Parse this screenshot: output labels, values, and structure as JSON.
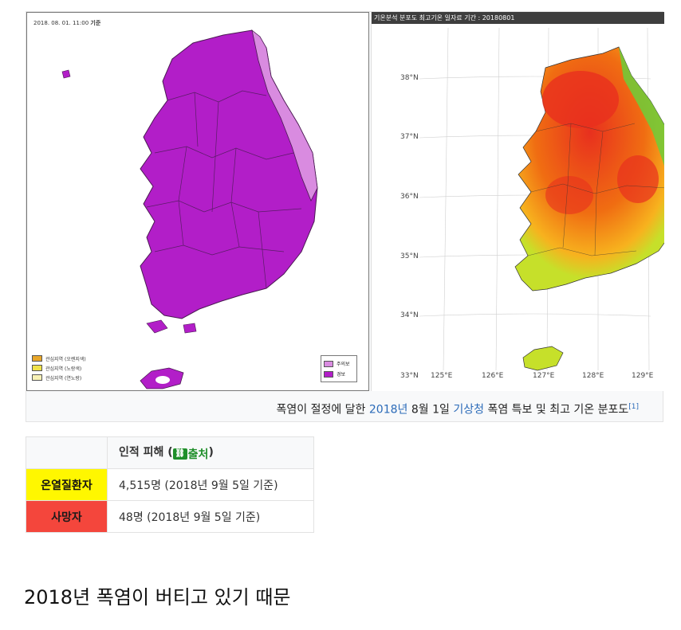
{
  "left_map": {
    "timestamp_prefix": "2018. 08. 01. 11:00",
    "timestamp_suffix": "기준",
    "legend_advisory": [
      {
        "label": "관심지역 (오렌지색)",
        "color": "#e8a72a"
      },
      {
        "label": "관심지역 (노랑색)",
        "color": "#f0e24a"
      },
      {
        "label": "관심지역 (연노랑)",
        "color": "#f7f1b6"
      }
    ],
    "legend_warning": [
      {
        "label": "주의보",
        "color": "#d98be0"
      },
      {
        "label": "경보",
        "color": "#b21ec8"
      }
    ],
    "colors": {
      "warning": "#b21ec8",
      "advisory": "#d98be0",
      "outline": "#4a1a52"
    }
  },
  "right_map": {
    "title": "기온분석 분포도 최고기온 일자료 기간 : 20180801",
    "lat_labels": [
      "38°N",
      "37°N",
      "36°N",
      "35°N",
      "34°N",
      "33°N"
    ],
    "lon_labels": [
      "125°E",
      "126°E",
      "127°E",
      "128°E",
      "129°E"
    ],
    "colors": {
      "hot": "#e8301e",
      "warm": "#f06d12",
      "mild": "#f7b21e",
      "cool": "#c6e02a",
      "cold": "#6cce3a"
    }
  },
  "caption": {
    "part1": "폭염이 절정에 달한",
    "link_year": "2018년",
    "part2": "8월 1일",
    "link_kma": "기상청",
    "part3": "폭염 특보 및 최고 기온 분포도",
    "ref": "[1]"
  },
  "damage_table": {
    "header_label": "인적 피해 (",
    "source_icon": "link-icon",
    "source_label": "출처",
    "header_close": ")",
    "rows": [
      {
        "category": "온열질환자",
        "value": "4,515명 (2018년 9월 5일 기준)",
        "color": "#fff700"
      },
      {
        "category": "사망자",
        "value": "48명 (2018년 9월 5일 기준)",
        "color": "#f4463c"
      }
    ]
  },
  "headline": "2018년 폭염이 버티고 있기 때문"
}
